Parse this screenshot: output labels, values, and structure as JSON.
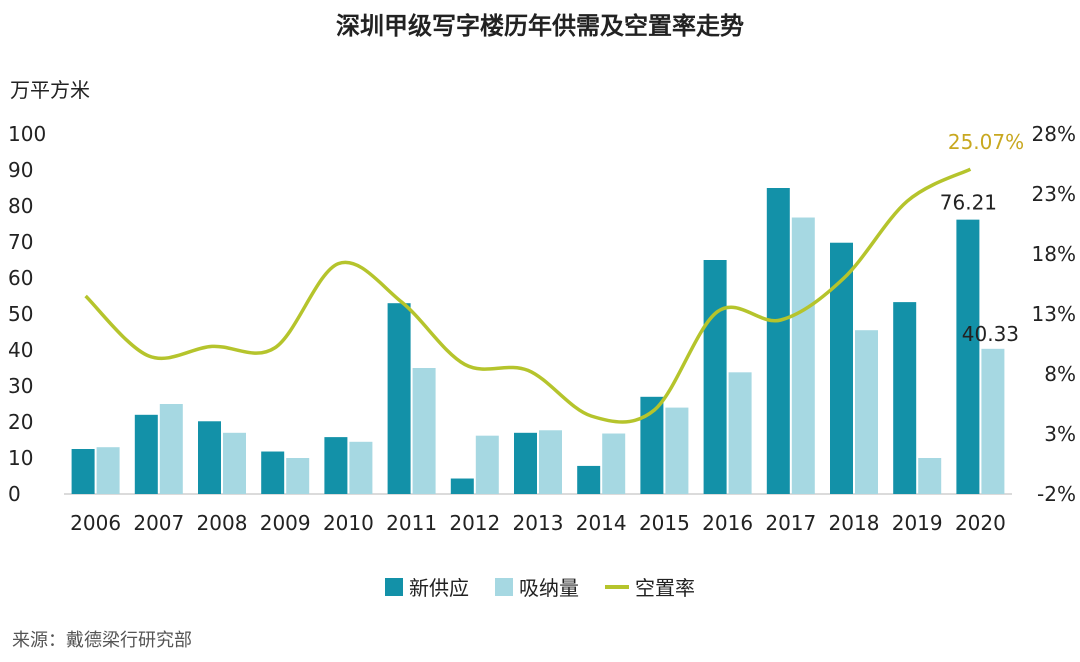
{
  "title": "深圳甲级写字楼历年供需及空置率走势",
  "source": "来源：戴德梁行研究部",
  "chart_data": {
    "type": "bar",
    "title": "深圳甲级写字楼历年供需及空置率走势",
    "ylabel": "万平方米",
    "ylim": [
      0,
      100
    ],
    "y_ticks": [
      "0",
      "10",
      "20",
      "30",
      "40",
      "50",
      "60",
      "70",
      "80",
      "90",
      "100"
    ],
    "y2lim": [
      -2,
      28
    ],
    "y2_ticks": [
      "-2%",
      "3%",
      "8%",
      "13%",
      "18%",
      "23%",
      "28%"
    ],
    "categories": [
      "2006",
      "2007",
      "2008",
      "2009",
      "2010",
      "2011",
      "2012",
      "2013",
      "2014",
      "2015",
      "2016",
      "2017",
      "2018",
      "2019",
      "2020"
    ],
    "series": [
      {
        "name": "新供应",
        "type": "bar",
        "color": "#1391a8",
        "values": [
          12.5,
          22,
          20.2,
          11.8,
          15.8,
          53,
          4.3,
          17,
          7.8,
          27,
          65,
          85,
          69.8,
          53.3,
          76.21
        ]
      },
      {
        "name": "吸纳量",
        "type": "bar",
        "color": "#a6d8e2",
        "values": [
          13,
          25,
          17,
          10,
          14.5,
          35,
          16.2,
          17.7,
          16.8,
          24,
          33.8,
          76.8,
          45.5,
          10,
          40.33
        ]
      },
      {
        "name": "空置率",
        "type": "line",
        "axis": "right",
        "color": "#b5c42c",
        "values": [
          14.5,
          9.5,
          10.3,
          10.2,
          17.2,
          14,
          8.8,
          8.3,
          4.5,
          5,
          13.2,
          12.5,
          16,
          22.4,
          25.07
        ]
      }
    ],
    "data_labels": [
      {
        "series": "新供应",
        "category": "2020",
        "text": "76.21"
      },
      {
        "series": "吸纳量",
        "category": "2020",
        "text": "40.33"
      },
      {
        "series": "空置率",
        "category": "2020",
        "text": "25.07%"
      }
    ],
    "legend_position": "bottom",
    "grid": false
  }
}
